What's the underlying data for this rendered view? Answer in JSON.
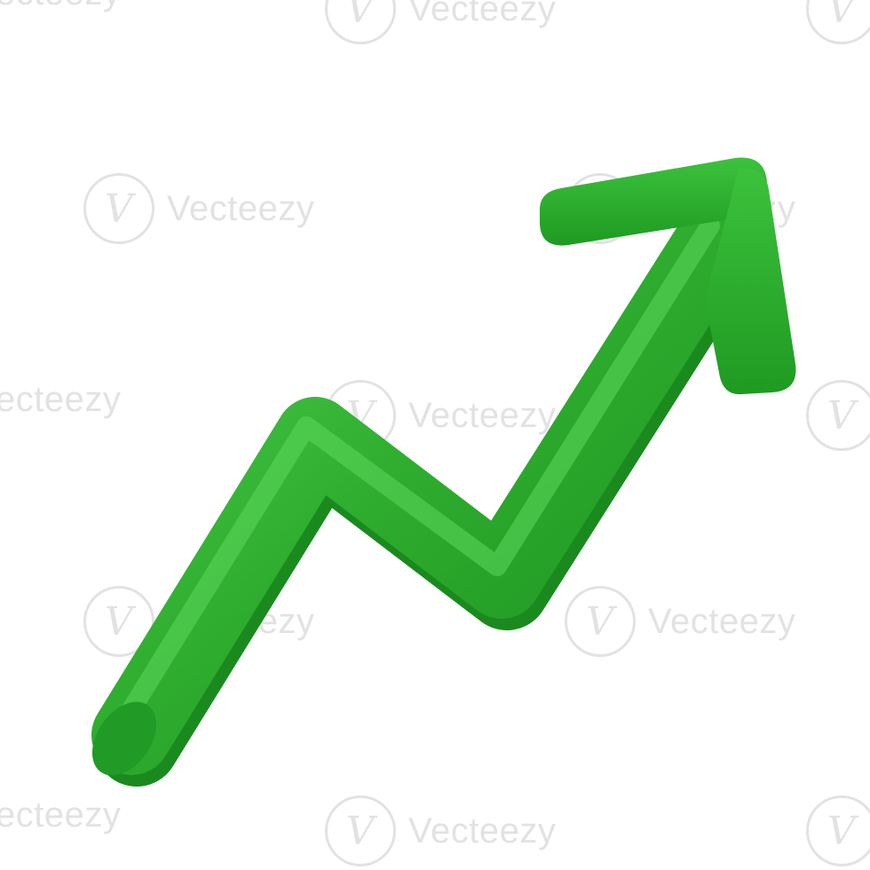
{
  "image": {
    "subject": "green-trend-up-arrow",
    "colors": {
      "background": "#ffffff",
      "arrow_main": "#2fae2f",
      "arrow_light": "#45c845",
      "arrow_dark": "#1b8f1f",
      "watermark": "#bebebe"
    }
  },
  "watermark": {
    "text": "Vecteezy",
    "logo_glyph": "V"
  }
}
